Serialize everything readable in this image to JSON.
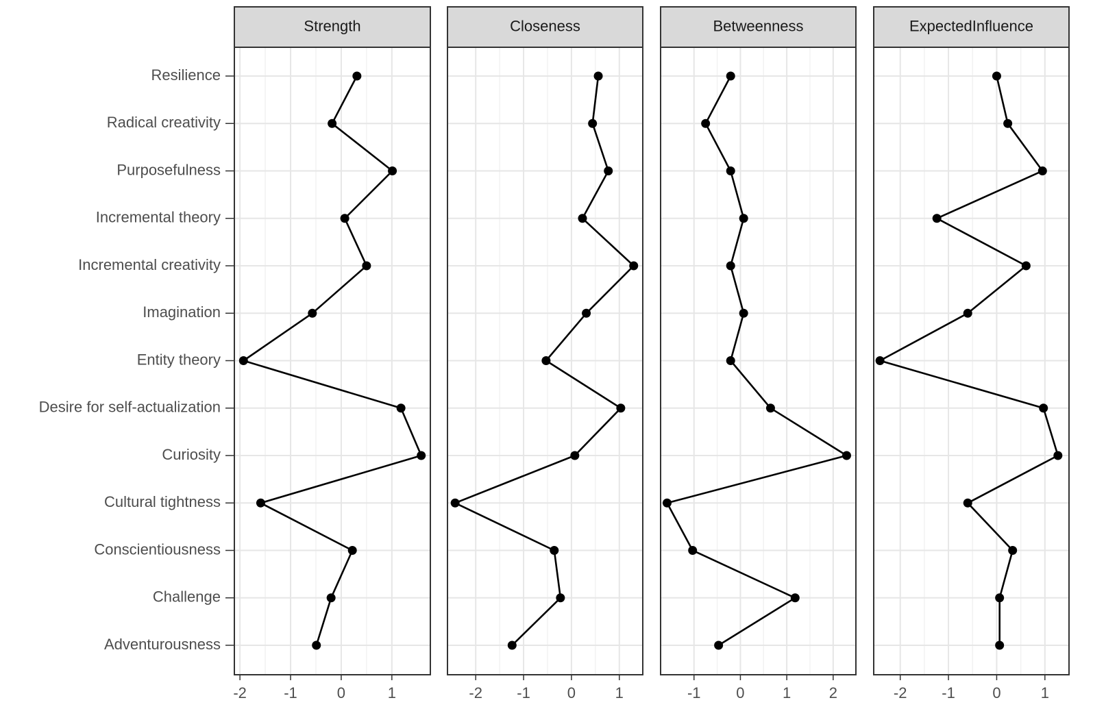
{
  "chart_data": {
    "type": "line",
    "color": "#000000",
    "grid": true,
    "categories": [
      "Resilience",
      "Radical creativity",
      "Purposefulness",
      "Incremental theory",
      "Incremental creativity",
      "Imagination",
      "Entity theory",
      "Desire for self-actualization",
      "Curiosity",
      "Cultural tightness",
      "Conscientiousness",
      "Challenge",
      "Adventurousness"
    ],
    "series": [
      {
        "name": "Strength",
        "xlim": [
          -2.11,
          1.76
        ],
        "xticks": [
          -2,
          -1,
          0,
          1
        ],
        "values": [
          0.31,
          -0.18,
          1.01,
          0.07,
          0.5,
          -0.57,
          -1.93,
          1.18,
          1.58,
          -1.59,
          0.22,
          -0.2,
          -0.49
        ]
      },
      {
        "name": "Closeness",
        "xlim": [
          -2.59,
          1.49
        ],
        "xticks": [
          -2,
          -1,
          0,
          1
        ],
        "values": [
          0.56,
          0.44,
          0.77,
          0.23,
          1.3,
          0.31,
          -0.53,
          1.03,
          0.07,
          -2.43,
          -0.36,
          -0.23,
          -1.24
        ]
      },
      {
        "name": "Betweenness",
        "xlim": [
          -1.72,
          2.49
        ],
        "xticks": [
          -1,
          0,
          1,
          2
        ],
        "values": [
          -0.21,
          -0.75,
          -0.21,
          0.07,
          -0.21,
          0.07,
          -0.21,
          0.65,
          2.29,
          -1.58,
          -1.03,
          1.18,
          -0.47
        ]
      },
      {
        "name": "ExpectedInfluence",
        "xlim": [
          -2.55,
          1.5
        ],
        "xticks": [
          -2,
          -1,
          0,
          1
        ],
        "values": [
          0.0,
          0.23,
          0.95,
          -1.24,
          0.61,
          -0.6,
          -2.42,
          0.97,
          1.27,
          -0.6,
          0.33,
          0.06,
          0.06
        ]
      }
    ]
  }
}
